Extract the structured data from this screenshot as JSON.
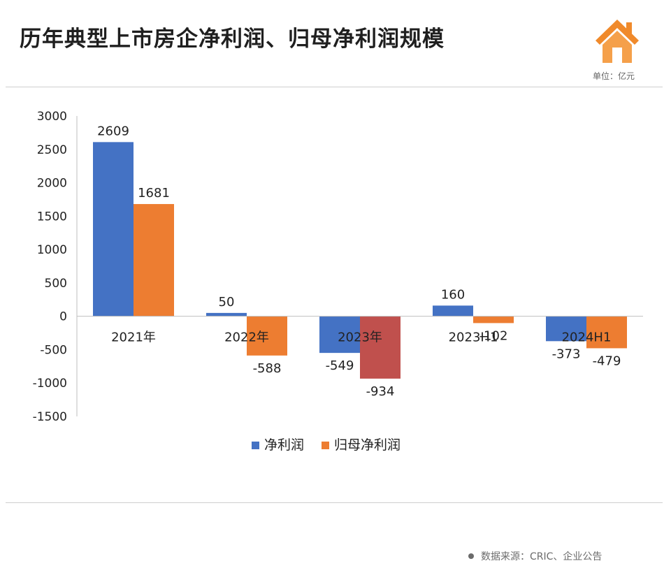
{
  "header": {
    "title": "历年典型上市房企净利润、归母净利润规模",
    "unit": "单位：亿元",
    "logo_icon": "house-icon",
    "logo_color": "#f08a2b"
  },
  "footer": {
    "source": "数据来源：CRIC、企业公告"
  },
  "chart_data": {
    "type": "bar",
    "categories": [
      "2021年",
      "2022年",
      "2023年",
      "2023H1",
      "2024H1"
    ],
    "series": [
      {
        "name": "净利润",
        "values": [
          2609,
          50,
          -549,
          160,
          -373
        ],
        "color": "#4472c4"
      },
      {
        "name": "归母净利润",
        "values": [
          1681,
          -588,
          -934,
          -102,
          -479
        ],
        "color": "#ed7d31",
        "highlight_color": "#c0504d",
        "highlight_index": 2
      }
    ],
    "ylim": [
      -1500,
      3000
    ],
    "yticks": [
      3000,
      2500,
      2000,
      1500,
      1000,
      500,
      0,
      -500,
      -1000,
      -1500
    ],
    "legend": "bottom-center",
    "grid": false
  }
}
